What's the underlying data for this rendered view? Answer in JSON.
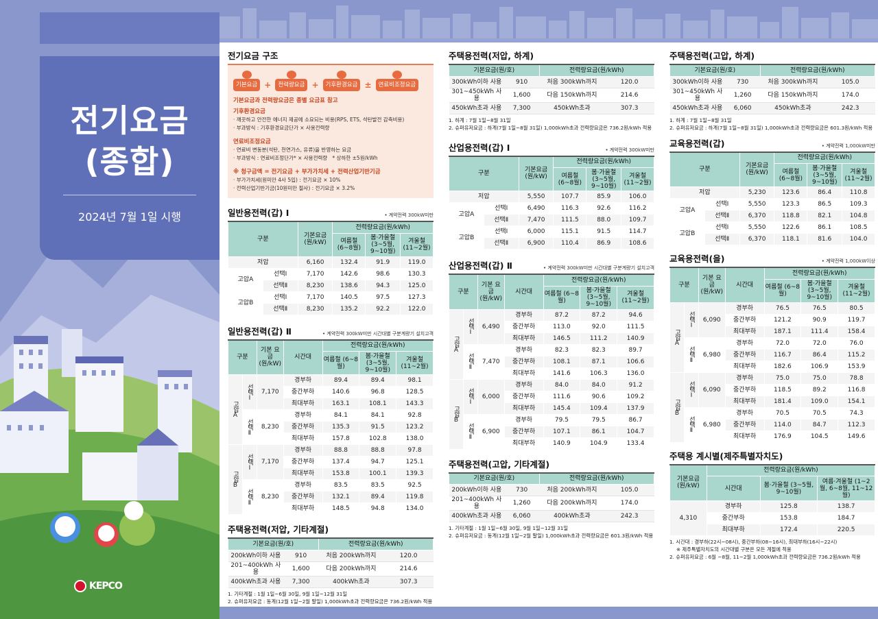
{
  "cover": {
    "title_line1": "전기요금",
    "title_line2": "(종합)",
    "date": "2024년 7월 1일 시행",
    "logo": "KEPCO"
  },
  "structure": {
    "title": "전기요금 구조",
    "chips": [
      "기본요금",
      "전력량요금",
      "기후환경요금",
      "연료비조정요금"
    ],
    "ops": [
      "+",
      "+",
      "±"
    ],
    "note1": "기본요금과 전력량요금은 종별 요금표 참고",
    "h1": "기후환경요금",
    "l1a": "· 깨끗하고 안전한 에너지 제공에 소요되는 비용(RPS, ETS, 석탄발전 감축비용)",
    "l1b": "· 부과방식 : 기후환경요금단가 × 사용전력량",
    "h2": "연료비조정요금",
    "l2a": "· 연료비 변동분(석탄, 천연가스, 유류)을 반영하는 요금",
    "l2b": "· 부과방식 : 연료비조정단가* × 사용전력량",
    "l2c": "* 상하한 ±5원/kWh",
    "h3": "※ 청구금액 = 전기요금 + 부가가치세 + 전력산업기반기금",
    "l3a": "· 부가가치세(원미만 4사 5입) : 전기요금 × 10%",
    "l3b": "· 전력산업기반기금(10원미만 절사) : 전기요금 × 3.2%"
  },
  "gen1": {
    "title": "일반용전력(갑) Ⅰ",
    "note": "• 계약전력 300kW미만",
    "h_gubun": "구분",
    "h_base": "기본요금 (원/kW)",
    "h_rate": "전력량요금(원/kWh)",
    "h_s": "여름철 (6~8월)",
    "h_sp": "봄·가을철 (3~5월, 9~10월)",
    "h_w": "겨울철 (11~2월)",
    "rows": [
      [
        "저압",
        "",
        "6,160",
        "132.4",
        "91.9",
        "119.0"
      ],
      [
        "고압A",
        "선택Ⅰ",
        "7,170",
        "142.6",
        "98.6",
        "130.3"
      ],
      [
        "",
        "선택Ⅱ",
        "8,230",
        "138.6",
        "94.3",
        "125.0"
      ],
      [
        "고압B",
        "선택Ⅰ",
        "7,170",
        "140.5",
        "97.5",
        "127.3"
      ],
      [
        "",
        "선택Ⅱ",
        "8,230",
        "135.2",
        "92.2",
        "122.0"
      ]
    ]
  },
  "gen2": {
    "title": "일반용전력(갑) Ⅱ",
    "note": "• 계약전력 300kW미만 시간대별 구분계량기 설치고객",
    "h_gubun": "구분",
    "h_base": "기본 요금 (원/kW)",
    "h_time": "시간대",
    "h_rate": "전력량요금(원/kWh)",
    "h_s": "여름철 (6~8월)",
    "h_sp": "봄·가을철 (3~5월, 9~10월)",
    "h_w": "겨울철 (11~2월)",
    "groups": [
      {
        "v": "고압A",
        "sub": [
          {
            "opt": "선택Ⅰ",
            "base": "7,170",
            "r": [
              [
                "경부하",
                "89.4",
                "89.4",
                "98.1"
              ],
              [
                "중간부하",
                "140.6",
                "96.8",
                "128.5"
              ],
              [
                "최대부하",
                "163.1",
                "108.1",
                "143.3"
              ]
            ]
          },
          {
            "opt": "선택Ⅱ",
            "base": "8,230",
            "r": [
              [
                "경부하",
                "84.1",
                "84.1",
                "92.8"
              ],
              [
                "중간부하",
                "135.3",
                "91.5",
                "123.2"
              ],
              [
                "최대부하",
                "157.8",
                "102.8",
                "138.0"
              ]
            ]
          }
        ]
      },
      {
        "v": "고압B",
        "sub": [
          {
            "opt": "선택Ⅰ",
            "base": "7,170",
            "r": [
              [
                "경부하",
                "88.8",
                "88.8",
                "97.8"
              ],
              [
                "중간부하",
                "137.4",
                "94.7",
                "125.1"
              ],
              [
                "최대부하",
                "153.8",
                "100.1",
                "139.3"
              ]
            ]
          },
          {
            "opt": "선택Ⅱ",
            "base": "8,230",
            "r": [
              [
                "경부하",
                "83.5",
                "83.5",
                "92.5"
              ],
              [
                "중간부하",
                "132.1",
                "89.4",
                "119.8"
              ],
              [
                "최대부하",
                "148.5",
                "94.8",
                "134.0"
              ]
            ]
          }
        ]
      }
    ]
  },
  "res_low_other": {
    "title": "주택용전력(저압, 기타계절)",
    "h_base": "기본요금(원/호)",
    "h_rate": "전력량요금(원/kWh)",
    "rows": [
      [
        "200kWh이하 사용",
        "910",
        "처음 200kWh까지",
        "120.0"
      ],
      [
        "201~400kWh 사용",
        "1,600",
        "다음 200kWh까지",
        "214.6"
      ],
      [
        "400kWh초과 사용",
        "7,300",
        "400kWh초과",
        "307.3"
      ]
    ],
    "fn1": "1. 기타계절 : 1월 1일~6월 30일, 9월 1일~12월 31일",
    "fn2": "2. 슈퍼유저요금 : 동계(12월 1일~2월 말일) 1,000kWh초과 전력량요금은 736.2원/kWh 적용"
  },
  "res_low_summer": {
    "title": "주택용전력(저압, 하계)",
    "h_base": "기본요금(원/호)",
    "h_rate": "전력량요금(원/kWh)",
    "rows": [
      [
        "300kWh이하 사용",
        "910",
        "처음 300kWh까지",
        "120.0"
      ],
      [
        "301~450kWh 사용",
        "1,600",
        "다음 150kWh까지",
        "214.6"
      ],
      [
        "450kWh초과 사용",
        "7,300",
        "450kWh초과",
        "307.3"
      ]
    ],
    "fn1": "1. 하계 : 7월 1일~8월 31일",
    "fn2": "2. 슈퍼유저요금 : 하계(7월 1일~8월 31일) 1,000kWh초과 전력량요금은 736.2원/kWh 적용"
  },
  "ind1": {
    "title": "산업용전력(갑) Ⅰ",
    "note": "• 계약전력 300kW미만",
    "h_gubun": "구분",
    "h_base": "기본요금 (원/kW)",
    "h_rate": "전력량요금(원/kWh)",
    "h_s": "여름철 (6~8월)",
    "h_sp": "봄·가을철 (3~5월, 9~10월)",
    "h_w": "겨울철 (11~2월)",
    "rows": [
      [
        "저압",
        "",
        "5,550",
        "107.7",
        "85.9",
        "106.0"
      ],
      [
        "고압A",
        "선택Ⅰ",
        "6,490",
        "116.3",
        "92.6",
        "116.2"
      ],
      [
        "",
        "선택Ⅱ",
        "7,470",
        "111.5",
        "88.0",
        "109.7"
      ],
      [
        "고압B",
        "선택Ⅰ",
        "6,000",
        "115.1",
        "91.5",
        "114.7"
      ],
      [
        "",
        "선택Ⅱ",
        "6,900",
        "110.4",
        "86.9",
        "108.6"
      ]
    ]
  },
  "ind2": {
    "title": "산업용전력(갑) Ⅱ",
    "note": "• 계약전력 300kW미만 시간대별 구분계량기 설치고객",
    "h_gubun": "구분",
    "h_base": "기본 요금 (원/kW)",
    "h_time": "시간대",
    "h_rate": "전력량요금(원/kWh)",
    "h_s": "여름철 (6~8월)",
    "h_sp": "봄·가을철 (3~5월, 9~10월)",
    "h_w": "겨울철 (11~2월)",
    "groups": [
      {
        "v": "고압A",
        "sub": [
          {
            "opt": "선택Ⅰ",
            "base": "6,490",
            "r": [
              [
                "경부하",
                "87.2",
                "87.2",
                "94.6"
              ],
              [
                "중간부하",
                "113.0",
                "92.0",
                "111.5"
              ],
              [
                "최대부하",
                "146.5",
                "111.2",
                "140.9"
              ]
            ]
          },
          {
            "opt": "선택Ⅱ",
            "base": "7,470",
            "r": [
              [
                "경부하",
                "82.3",
                "82.3",
                "89.7"
              ],
              [
                "중간부하",
                "108.1",
                "87.1",
                "106.6"
              ],
              [
                "최대부하",
                "141.6",
                "106.3",
                "136.0"
              ]
            ]
          }
        ]
      },
      {
        "v": "고압B",
        "sub": [
          {
            "opt": "선택Ⅰ",
            "base": "6,000",
            "r": [
              [
                "경부하",
                "84.0",
                "84.0",
                "91.2"
              ],
              [
                "중간부하",
                "111.6",
                "90.6",
                "109.2"
              ],
              [
                "최대부하",
                "145.4",
                "109.4",
                "137.9"
              ]
            ]
          },
          {
            "opt": "선택Ⅱ",
            "base": "6,900",
            "r": [
              [
                "경부하",
                "79.5",
                "79.5",
                "86.7"
              ],
              [
                "중간부하",
                "107.1",
                "86.1",
                "104.7"
              ],
              [
                "최대부하",
                "140.9",
                "104.9",
                "133.4"
              ]
            ]
          }
        ]
      }
    ]
  },
  "res_high_other": {
    "title": "주택용전력(고압, 기타계절)",
    "h_base": "기본요금(원/호)",
    "h_rate": "전력량요금(원/kWh)",
    "rows": [
      [
        "200kWh이하 사용",
        "730",
        "처음 200kWh까지",
        "105.0"
      ],
      [
        "201~400kWh 사용",
        "1,260",
        "다음 200kWh까지",
        "174.0"
      ],
      [
        "400kWh초과 사용",
        "6,060",
        "400kWh초과",
        "242.3"
      ]
    ],
    "fn1": "1. 기타계절 : 1월 1일~6월 30일, 9월 1일~12월 31일",
    "fn2": "2. 슈퍼유저요금 : 동계(12월 1일~2월 말일) 1,000kWh초과 전력량요금은 601.3원/kWh 적용"
  },
  "res_high_summer": {
    "title": "주택용전력(고압, 하계)",
    "h_base": "기본요금(원/호)",
    "h_rate": "전력량요금(원/kWh)",
    "rows": [
      [
        "300kWh이하 사용",
        "730",
        "처음 300kWh까지",
        "105.0"
      ],
      [
        "301~450kWh 사용",
        "1,260",
        "다음 150kWh까지",
        "174.0"
      ],
      [
        "450kWh초과 사용",
        "6,060",
        "450kWh초과",
        "242.3"
      ]
    ],
    "fn1": "1. 하계 : 7월 1일~8월 31일",
    "fn2": "2. 슈퍼유저요금 : 하계(7월 1일~8월 31일) 1,000kWh초과 전력량요금은 601.3원/kWh 적용"
  },
  "edu1": {
    "title": "교육용전력(갑)",
    "note": "• 계약전력 1,000kW미만",
    "h_gubun": "구분",
    "h_base": "기본요금 (원/kW)",
    "h_rate": "전력량요금(원/kWh)",
    "h_s": "여름철 (6~8월)",
    "h_sp": "봄·가을철 (3~5월, 9~10월)",
    "h_w": "겨울철 (11~2월)",
    "rows": [
      [
        "저압",
        "",
        "5,230",
        "123.6",
        "86.4",
        "110.8"
      ],
      [
        "고압A",
        "선택Ⅰ",
        "5,550",
        "123.3",
        "86.5",
        "109.3"
      ],
      [
        "",
        "선택Ⅱ",
        "6,370",
        "118.8",
        "82.1",
        "104.8"
      ],
      [
        "고압B",
        "선택Ⅰ",
        "5,550",
        "122.6",
        "86.1",
        "108.5"
      ],
      [
        "",
        "선택Ⅱ",
        "6,370",
        "118.1",
        "81.6",
        "104.0"
      ]
    ]
  },
  "edu2": {
    "title": "교육용전력(을)",
    "note": "• 계약전력 1,000kW이상",
    "h_gubun": "구분",
    "h_base": "기본 요금 (원/kW)",
    "h_time": "시간대",
    "h_rate": "전력량요금(원/kWh)",
    "h_s": "여름철 (6~8월)",
    "h_sp": "봄·가을철 (3~5월, 9~10월)",
    "h_w": "겨울철 (11~2월)",
    "groups": [
      {
        "v": "고압A",
        "sub": [
          {
            "opt": "선택Ⅰ",
            "base": "6,090",
            "r": [
              [
                "경부하",
                "76.5",
                "76.5",
                "80.5"
              ],
              [
                "중간부하",
                "121.2",
                "90.9",
                "119.7"
              ],
              [
                "최대부하",
                "187.1",
                "111.4",
                "158.4"
              ]
            ]
          },
          {
            "opt": "선택Ⅱ",
            "base": "6,980",
            "r": [
              [
                "경부하",
                "72.0",
                "72.0",
                "76.0"
              ],
              [
                "중간부하",
                "116.7",
                "86.4",
                "115.2"
              ],
              [
                "최대부하",
                "182.6",
                "106.9",
                "153.9"
              ]
            ]
          }
        ]
      },
      {
        "v": "고압B",
        "sub": [
          {
            "opt": "선택Ⅰ",
            "base": "6,090",
            "r": [
              [
                "경부하",
                "75.0",
                "75.0",
                "78.8"
              ],
              [
                "중간부하",
                "118.5",
                "89.2",
                "116.8"
              ],
              [
                "최대부하",
                "181.4",
                "109.0",
                "154.1"
              ]
            ]
          },
          {
            "opt": "선택Ⅱ",
            "base": "6,980",
            "r": [
              [
                "경부하",
                "70.5",
                "70.5",
                "74.3"
              ],
              [
                "중간부하",
                "114.0",
                "84.7",
                "112.3"
              ],
              [
                "최대부하",
                "176.9",
                "104.5",
                "149.6"
              ]
            ]
          }
        ]
      }
    ]
  },
  "jeju": {
    "title": "주택용 계시별(제주특별자치도)",
    "h_base": "기본요금 (원/kW)",
    "h_time": "시간대",
    "h_rate": "전력량요금(원/kWh)",
    "h_sp": "봄·가을철 (3~5월, 9~10월)",
    "h_sw": "여름·겨울철 (1~2월, 6~8월, 11~12월)",
    "base": "4,310",
    "rows": [
      [
        "경부하",
        "125.8",
        "138.7"
      ],
      [
        "중간부하",
        "153.8",
        "184.7"
      ],
      [
        "최대부하",
        "172.4",
        "220.5"
      ]
    ],
    "fn1": "1. 시간대 : 경부하(22시~08시), 중간부하(08~16시), 최대부하(16시~22시)",
    "fn2": "※ 제주특별자치도의 시간대별 구분은 모든 계절에 적용",
    "fn3": "2. 슈퍼유저요금 : 6월 ~8월, 11~2월 1,000kWh초과 전력량요금은 736.2원/kWh 적용"
  }
}
